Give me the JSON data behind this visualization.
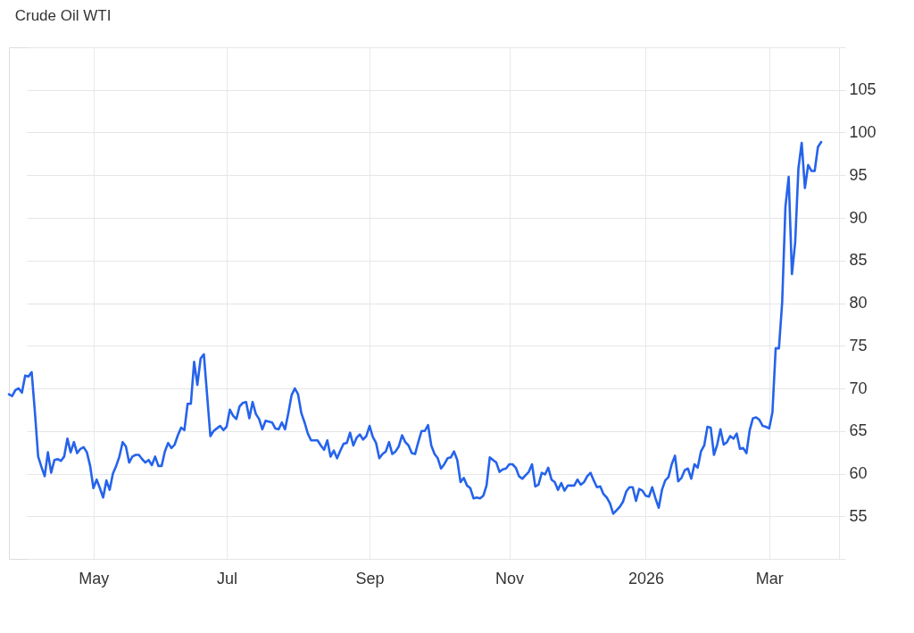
{
  "chart_data": {
    "type": "line",
    "title": "Crude Oil WTI",
    "categories": [
      null,
      null,
      null,
      null,
      null,
      null,
      null,
      null,
      null,
      null,
      null,
      null,
      null,
      null,
      null,
      null,
      null,
      null,
      null,
      null,
      null,
      null,
      null,
      null,
      null,
      null,
      "May",
      null,
      null,
      null,
      null,
      null,
      null,
      null,
      null,
      null,
      null,
      null,
      null,
      null,
      null,
      null,
      null,
      null,
      null,
      null,
      null,
      null,
      null,
      null,
      null,
      null,
      null,
      null,
      null,
      null,
      null,
      null,
      null,
      null,
      null,
      null,
      null,
      null,
      null,
      null,
      null,
      "Jul",
      null,
      null,
      null,
      null,
      null,
      null,
      null,
      null,
      null,
      null,
      null,
      null,
      null,
      null,
      null,
      null,
      null,
      null,
      null,
      null,
      null,
      null,
      null,
      null,
      null,
      null,
      null,
      null,
      null,
      null,
      null,
      null,
      null,
      null,
      null,
      null,
      null,
      null,
      null,
      null,
      null,
      null,
      null,
      "Sep",
      null,
      null,
      null,
      null,
      null,
      null,
      null,
      null,
      null,
      null,
      null,
      null,
      null,
      null,
      null,
      null,
      null,
      null,
      null,
      null,
      null,
      null,
      null,
      null,
      null,
      null,
      null,
      null,
      null,
      null,
      null,
      null,
      null,
      null,
      null,
      null,
      null,
      null,
      null,
      null,
      null,
      null,
      "Nov",
      null,
      null,
      null,
      null,
      null,
      null,
      null,
      null,
      null,
      null,
      null,
      null,
      null,
      null,
      null,
      null,
      null,
      null,
      null,
      null,
      null,
      null,
      null,
      null,
      null,
      null,
      null,
      null,
      null,
      null,
      null,
      null,
      null,
      null,
      null,
      null,
      null,
      null,
      null,
      null,
      null,
      "2026",
      null,
      null,
      null,
      null,
      null,
      null,
      null,
      null,
      null,
      null,
      null,
      null,
      null,
      null,
      null,
      null,
      null,
      null,
      null,
      null,
      null,
      null,
      null,
      null,
      null,
      null,
      null,
      null,
      null,
      null,
      null,
      null,
      null,
      null,
      null,
      null,
      null,
      "Mar",
      null,
      null,
      null,
      null,
      null,
      null,
      null,
      null,
      null,
      null,
      null,
      null,
      null,
      null,
      null,
      null
    ],
    "series": [
      {
        "color": "#2563eb",
        "values": [
          69.3,
          69.1,
          69.8,
          70.0,
          69.5,
          71.5,
          71.4,
          71.9,
          67.2,
          62.0,
          60.8,
          59.7,
          62.5,
          60.1,
          61.6,
          61.7,
          61.5,
          62.0,
          64.1,
          62.5,
          63.7,
          62.4,
          62.9,
          63.1,
          62.5,
          60.9,
          58.3,
          59.3,
          58.3,
          57.2,
          59.2,
          58.1,
          60.0,
          60.9,
          62.0,
          63.7,
          63.2,
          61.3,
          62.0,
          62.2,
          62.2,
          61.7,
          61.3,
          61.6,
          61.0,
          62.0,
          60.9,
          60.9,
          62.6,
          63.6,
          63.0,
          63.4,
          64.5,
          65.4,
          65.1,
          68.2,
          68.2,
          73.1,
          70.4,
          73.5,
          74.0,
          69.2,
          64.4,
          65.0,
          65.3,
          65.6,
          65.1,
          65.5,
          67.5,
          66.8,
          66.4,
          67.9,
          68.3,
          68.4,
          66.5,
          68.4,
          67.0,
          66.4,
          65.2,
          66.2,
          66.1,
          66.0,
          65.3,
          65.2,
          66.0,
          65.2,
          67.1,
          69.2,
          70.0,
          69.3,
          67.1,
          66.0,
          64.7,
          63.9,
          63.9,
          63.9,
          63.3,
          62.8,
          63.9,
          62.0,
          62.7,
          61.8,
          62.7,
          63.5,
          63.6,
          64.8,
          63.3,
          64.2,
          64.6,
          64.0,
          64.4,
          65.6,
          64.3,
          63.6,
          61.8,
          62.3,
          62.6,
          63.7,
          62.3,
          62.6,
          63.2,
          64.5,
          63.7,
          63.3,
          62.4,
          62.3,
          63.7,
          65.0,
          65.0,
          65.7,
          63.3,
          62.3,
          61.8,
          60.6,
          61.1,
          61.8,
          61.9,
          62.6,
          61.6,
          59.0,
          59.5,
          58.6,
          58.3,
          57.1,
          57.2,
          57.1,
          57.4,
          58.6,
          61.9,
          61.6,
          61.3,
          60.2,
          60.5,
          60.6,
          61.1,
          61.1,
          60.7,
          59.7,
          59.4,
          59.8,
          60.2,
          61.1,
          58.5,
          58.7,
          60.1,
          59.9,
          60.7,
          59.3,
          59.0,
          58.1,
          58.9,
          58.0,
          58.6,
          58.6,
          58.6,
          59.3,
          58.7,
          59.0,
          59.7,
          60.1,
          59.2,
          58.4,
          58.5,
          57.6,
          57.2,
          56.5,
          55.3,
          55.7,
          56.1,
          56.7,
          57.9,
          58.4,
          58.4,
          56.8,
          58.2,
          58.0,
          57.4,
          57.3,
          58.4,
          57.1,
          56.0,
          58.1,
          59.2,
          59.6,
          61.1,
          62.1,
          59.1,
          59.5,
          60.4,
          60.6,
          59.4,
          61.1,
          60.7,
          62.6,
          63.3,
          65.5,
          65.4,
          62.2,
          63.4,
          65.2,
          63.4,
          63.7,
          64.4,
          64.1,
          64.7,
          62.9,
          63.0,
          62.4,
          65.1,
          66.5,
          66.6,
          66.3,
          65.6,
          65.5,
          65.3,
          67.2,
          74.7,
          74.7,
          80.1,
          91.3,
          94.8,
          83.4,
          87.1,
          95.8,
          98.8,
          93.5,
          96.2,
          95.5,
          95.5,
          98.3,
          98.9
        ]
      }
    ],
    "ylim": [
      50,
      110
    ],
    "yticks": [
      {
        "value": 50,
        "label": null
      },
      55,
      60,
      65,
      70,
      75,
      80,
      85,
      90,
      95,
      100,
      105,
      {
        "value": 110,
        "label": null
      }
    ],
    "grid": true
  }
}
